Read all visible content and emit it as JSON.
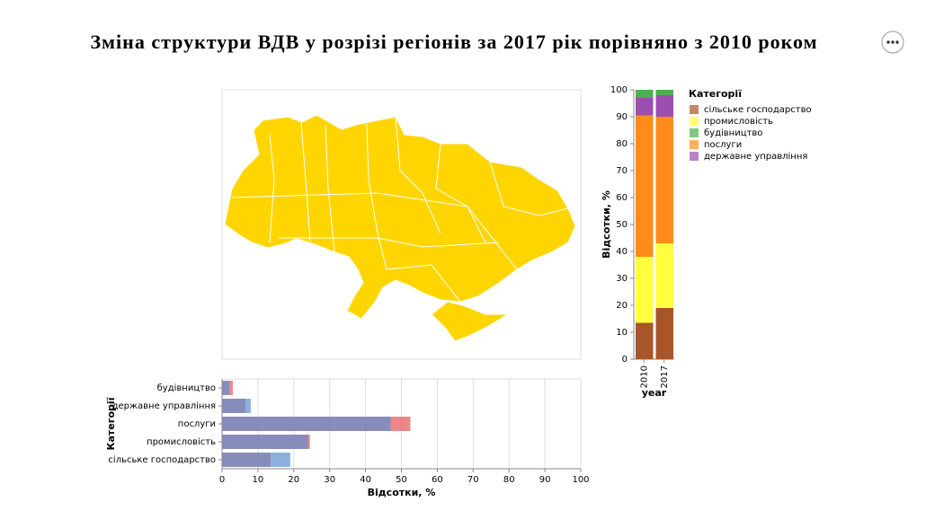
{
  "title": "Зміна структури ВДВ у розрізі регіонів за 2017 рік порівняно з 2010 роком",
  "chart_data": [
    {
      "type": "bar",
      "orientation": "vertical",
      "stacked": true,
      "grid": false,
      "legend": "right",
      "x_label": "year",
      "y_label": "Відсотки, %",
      "legend_title": "Категорії",
      "categories": [
        "2010",
        "2017"
      ],
      "series": [
        {
          "name": "сільське господарство",
          "color": "#a8552a",
          "values": [
            13.5,
            19
          ]
        },
        {
          "name": "промисловість",
          "color": "#ffff40",
          "values": [
            24.5,
            24
          ]
        },
        {
          "name": "будівництво",
          "color": "#4caf50",
          "values": [
            3,
            2
          ]
        },
        {
          "name": "послуги",
          "color": "#ff8c1a",
          "values": [
            52.5,
            47
          ]
        },
        {
          "name": "державне управління",
          "color": "#9b4fb0",
          "values": [
            6.5,
            8
          ]
        }
      ],
      "stack_order": [
        0,
        1,
        3,
        4,
        2
      ],
      "ylim": [
        0,
        100
      ],
      "yticks": [
        0,
        10,
        20,
        30,
        40,
        50,
        60,
        70,
        80,
        90,
        100
      ]
    },
    {
      "type": "bar",
      "orientation": "horizontal",
      "stacked": false,
      "grid": true,
      "x_label": "Відсотки, %",
      "y_label": "Категорії",
      "categories": [
        "будівництво",
        "державне управління",
        "послуги",
        "промисловість",
        "сільське господарство"
      ],
      "series": [
        {
          "color": "#e45756",
          "values": [
            3,
            6.5,
            52.5,
            24.5,
            13.5
          ]
        },
        {
          "color": "#5b8fd0",
          "values": [
            2,
            8,
            47,
            24,
            19
          ]
        }
      ],
      "xlim": [
        0,
        100
      ],
      "xticks": [
        0,
        10,
        20,
        30,
        40,
        50,
        60,
        70,
        80,
        90,
        100
      ]
    }
  ]
}
